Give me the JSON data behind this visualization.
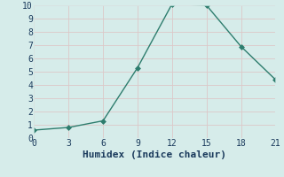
{
  "x": [
    0,
    3,
    6,
    9,
    12,
    15,
    18,
    21
  ],
  "y": [
    0.6,
    0.8,
    1.3,
    5.3,
    10.1,
    10.0,
    6.9,
    4.4
  ],
  "line_color": "#2e7d6e",
  "marker": "D",
  "marker_size": 3,
  "xlabel": "Humidex (Indice chaleur)",
  "xlim": [
    0,
    21
  ],
  "ylim": [
    0,
    10
  ],
  "yticks": [
    0,
    1,
    2,
    3,
    4,
    5,
    6,
    7,
    8,
    9,
    10
  ],
  "xticks": [
    0,
    3,
    6,
    9,
    12,
    15,
    18,
    21
  ],
  "bg_color": "#d6ecea",
  "grid_color_major": "#c0d8d4",
  "grid_color_minor": "#e0eeec",
  "font_color": "#1a3a5c",
  "font_family": "monospace",
  "xlabel_fontsize": 8,
  "tick_fontsize": 7,
  "linewidth": 1.0
}
